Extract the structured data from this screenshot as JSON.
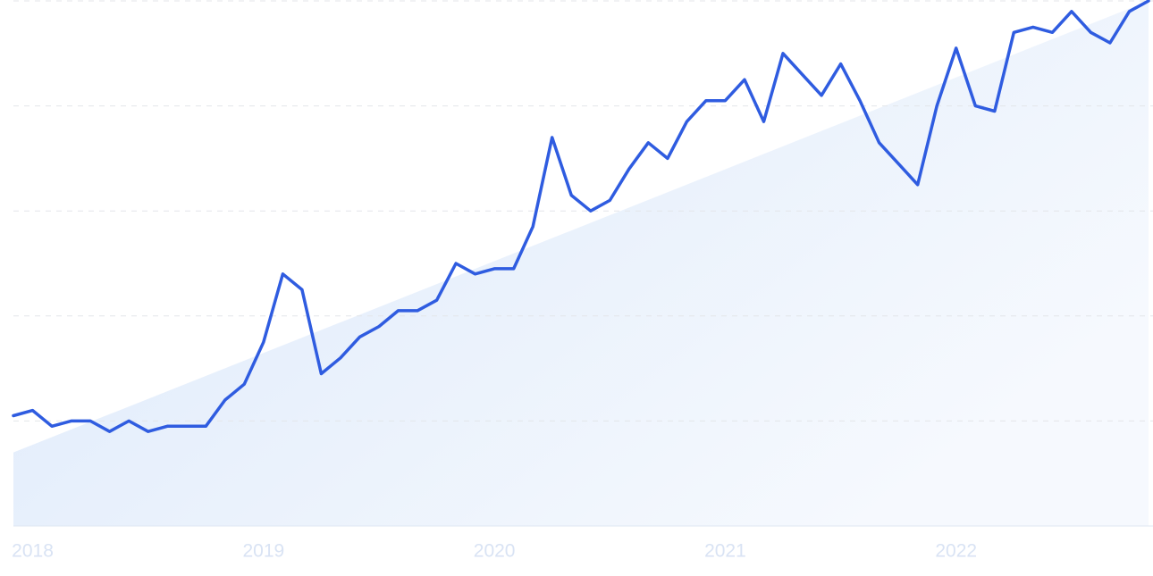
{
  "chart_data": {
    "type": "line",
    "categories": [
      null,
      "2018",
      null,
      null,
      null,
      null,
      null,
      null,
      null,
      null,
      null,
      null,
      null,
      "2019",
      null,
      null,
      null,
      null,
      null,
      null,
      null,
      null,
      null,
      null,
      null,
      "2020",
      null,
      null,
      null,
      null,
      null,
      null,
      null,
      null,
      null,
      null,
      null,
      "2021",
      null,
      null,
      null,
      null,
      null,
      null,
      null,
      null,
      null,
      null,
      null,
      "2022",
      null,
      null,
      null,
      null,
      null,
      null,
      null,
      null,
      null,
      null
    ],
    "values": [
      21,
      22,
      19,
      20,
      20,
      18,
      20,
      18,
      19,
      19,
      19,
      24,
      27,
      35,
      48,
      45,
      29,
      32,
      36,
      38,
      41,
      41,
      43,
      50,
      48,
      49,
      49,
      57,
      74,
      63,
      60,
      62,
      68,
      73,
      70,
      77,
      81,
      81,
      85,
      77,
      90,
      86,
      82,
      88,
      81,
      73,
      69,
      65,
      80,
      91,
      80,
      79,
      94,
      95,
      94,
      98,
      94,
      92,
      98,
      100
    ],
    "color": "#2f5ce0",
    "trend": [
      14,
      100
    ],
    "trend_color": "#dbe8fa",
    "ylim": [
      0,
      100
    ],
    "yticks": [
      0,
      20,
      40,
      60,
      80,
      100
    ],
    "grid": true
  }
}
